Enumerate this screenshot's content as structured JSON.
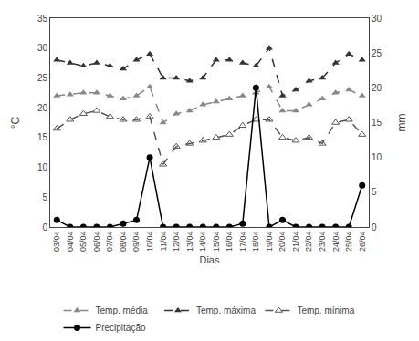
{
  "chart_data": {
    "type": "line",
    "x_label": "Dias",
    "y_label": "°C",
    "y2_label": "mm",
    "categories": [
      "03/04",
      "04/04",
      "05/04",
      "06/04",
      "07/04",
      "08/04",
      "09/04",
      "10/04",
      "11/04",
      "12/04",
      "13/04",
      "14/04",
      "15/04",
      "16/04",
      "17/04",
      "18/04",
      "19/04",
      "20/04",
      "21/04",
      "22/04",
      "23/04",
      "24/04",
      "25/04",
      "26/04"
    ],
    "series": [
      {
        "name": "Temp. média",
        "color": "#888888",
        "marker": "triangle-up",
        "line_style": "dash",
        "values": [
          22.0,
          22.2,
          22.5,
          22.5,
          22.0,
          21.5,
          22.0,
          23.5,
          17.5,
          19.0,
          19.5,
          20.5,
          21.0,
          21.5,
          22.0,
          22.5,
          23.5,
          19.5,
          19.5,
          20.5,
          21.5,
          22.5,
          23.0,
          22.0
        ]
      },
      {
        "name": "Temp. máxima",
        "color": "#333333",
        "marker": "triangle-up",
        "line_style": "dash",
        "values": [
          28.0,
          27.5,
          27.0,
          27.5,
          27.0,
          26.5,
          28.0,
          29.0,
          25.0,
          25.0,
          24.5,
          25.0,
          28.0,
          28.0,
          27.5,
          27.0,
          30.0,
          22.0,
          23.0,
          24.5,
          25.0,
          27.5,
          29.0,
          28.0
        ]
      },
      {
        "name": "Temp. mínima",
        "color": "#555555",
        "marker": "triangle-up-open",
        "line_style": "dash",
        "values": [
          16.5,
          18.0,
          19.0,
          19.5,
          18.5,
          18.0,
          18.0,
          18.5,
          10.5,
          13.5,
          14.0,
          14.5,
          15.0,
          15.5,
          17.0,
          18.0,
          18.0,
          15.0,
          14.5,
          15.0,
          14.0,
          17.5,
          18.0,
          15.5
        ]
      },
      {
        "name": "Precipitação",
        "color": "#000000",
        "marker": "circle",
        "line_style": "solid",
        "axis": "y2",
        "values": [
          1.0,
          0.0,
          0.0,
          0.0,
          0.0,
          0.5,
          1.0,
          10.0,
          0.0,
          0.0,
          0.0,
          0.0,
          0.0,
          0.0,
          0.5,
          20.0,
          0.0,
          1.0,
          0.0,
          0.0,
          0.0,
          0.0,
          0.0,
          6.0
        ]
      }
    ],
    "ylim": [
      0,
      35
    ],
    "yticks": [
      0,
      5,
      10,
      15,
      20,
      25,
      30,
      35
    ],
    "y2lim": [
      0,
      30
    ],
    "y2ticks": [
      0,
      5,
      10,
      15,
      20,
      25,
      30
    ],
    "grid": false,
    "legend": "bottom"
  }
}
